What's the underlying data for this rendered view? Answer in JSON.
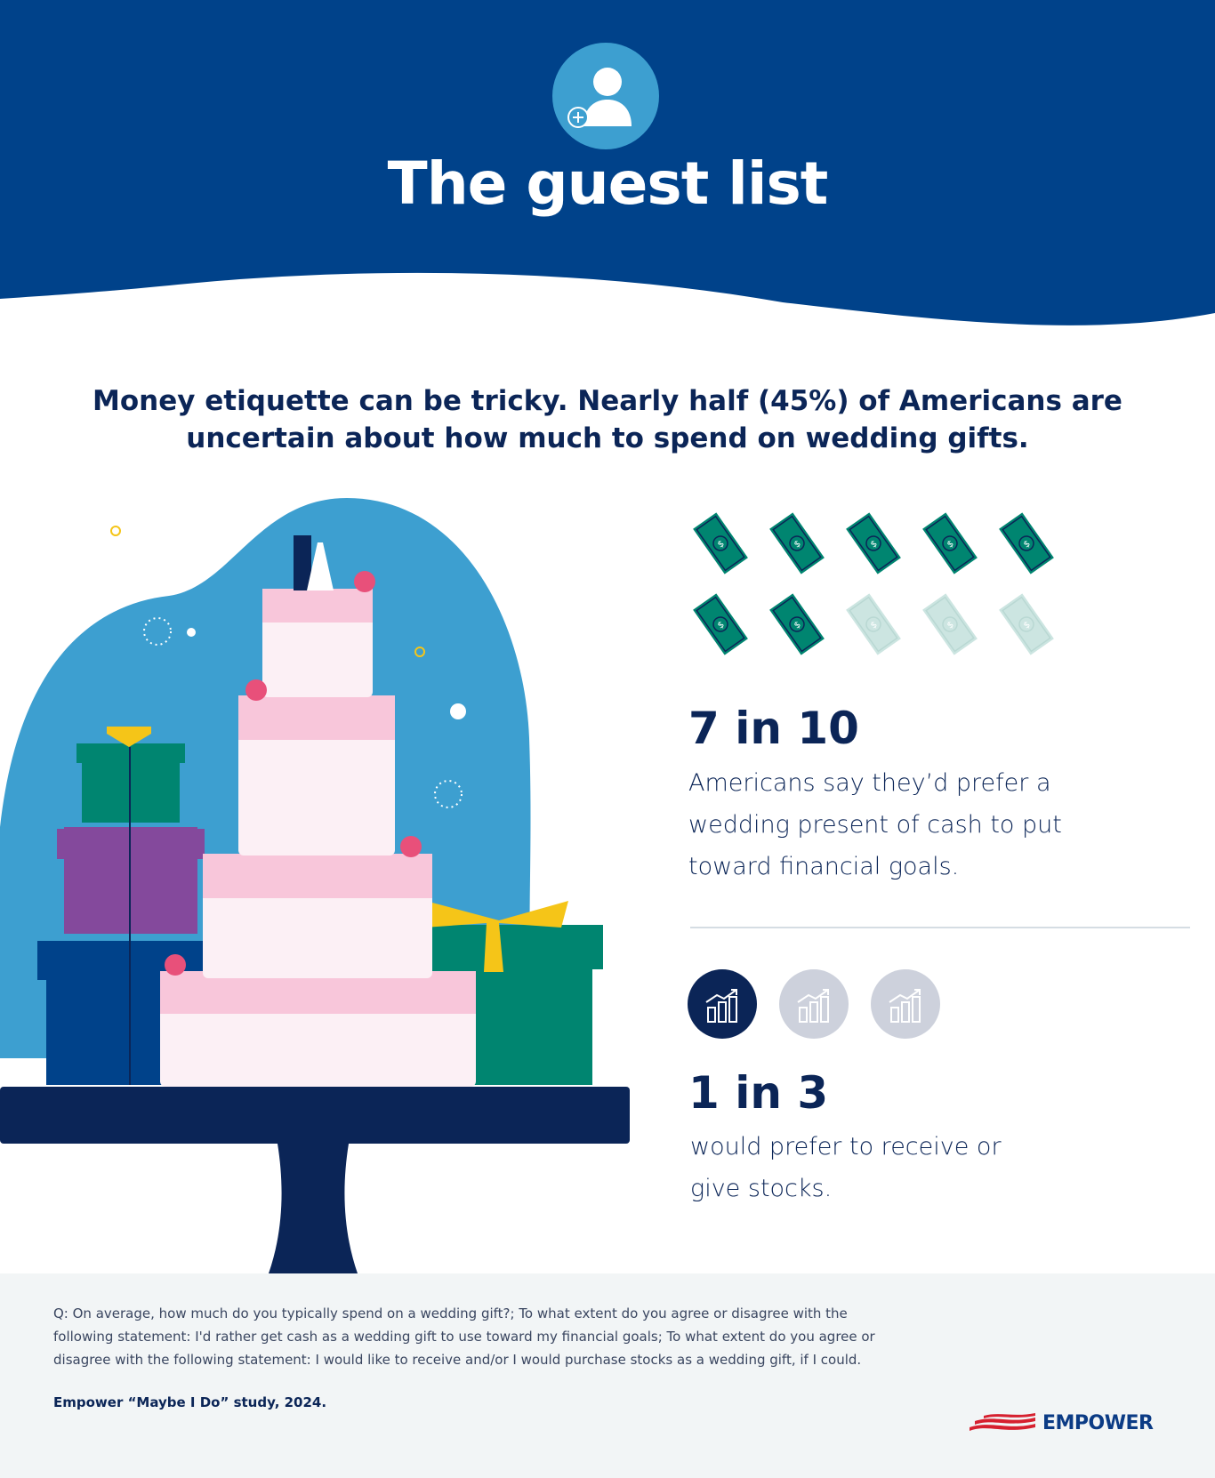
{
  "header": {
    "title": "The guest list",
    "icon": "add-user-icon",
    "background": "#00428a",
    "icon_circle": "#3d9fd0"
  },
  "headline": "Money etiquette can be tricky. Nearly half (45%) of Americans are uncertain about how much to spend on wedding gifts.",
  "stat_cash": {
    "big": "7 in 10",
    "text_lines": [
      "Americans say they’d prefer a",
      "wedding present of cash to put",
      "toward financial goals."
    ],
    "icon": "dollar-bill-icon",
    "filled": 7,
    "total": 10,
    "color": "#008570",
    "faded_color": "#cce5e1"
  },
  "stat_stocks": {
    "big": "1 in 3",
    "text_lines": [
      "would prefer to receive or",
      "give stocks."
    ],
    "icon": "stock-chart-icon",
    "filled": 1,
    "total": 3,
    "color": "#0b2557",
    "faded_color": "#cdd1dc"
  },
  "footer": {
    "question": "Q: On average, how much do you typically spend on a wedding gift?; To what extent do you agree or disagree with the following statement: I'd rather get cash as a wedding gift to use toward my financial goals; To what extent do you agree or disagree with the following statement: I would like to receive and/or I would purchase stocks as a wedding gift, if I could.",
    "source": "Empower “Maybe I Do” study, 2024.",
    "logo": "EMPOWER"
  }
}
